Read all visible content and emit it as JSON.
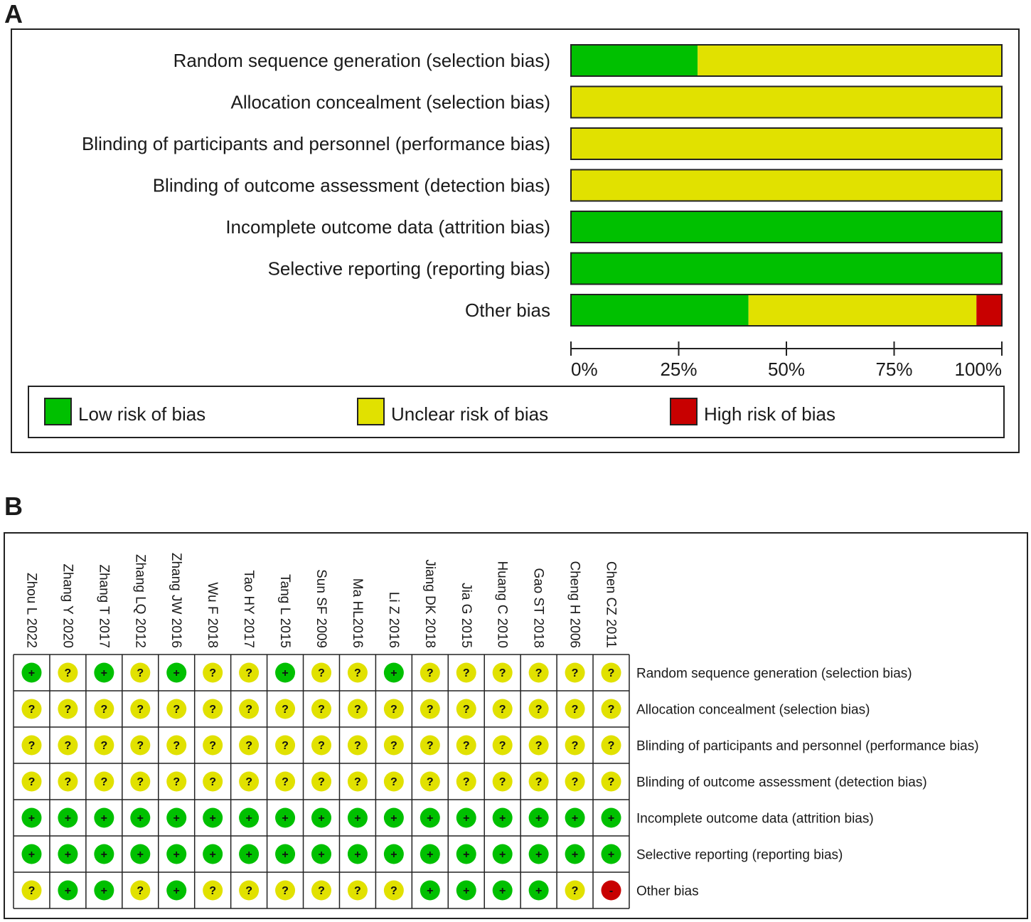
{
  "panels": {
    "a_label": "A",
    "b_label": "B"
  },
  "colors": {
    "low": "#00c000",
    "unclear": "#e1e100",
    "high": "#c80000"
  },
  "legend": [
    {
      "key": "low",
      "label": "Low risk of bias"
    },
    {
      "key": "unclear",
      "label": "Unclear risk of bias"
    },
    {
      "key": "high",
      "label": "High risk of bias"
    }
  ],
  "chart_data": [
    {
      "type": "bar",
      "orientation": "horizontal",
      "stacked": true,
      "categories": [
        "Random sequence generation (selection bias)",
        "Allocation concealment (selection bias)",
        "Blinding of participants and personnel (performance bias)",
        "Blinding of outcome assessment (detection bias)",
        "Incomplete outcome data (attrition bias)",
        "Selective reporting (reporting bias)",
        "Other bias"
      ],
      "series": [
        {
          "name": "Low risk of bias",
          "values": [
            29.4,
            0,
            0,
            0,
            100,
            100,
            41.2
          ]
        },
        {
          "name": "Unclear risk of bias",
          "values": [
            70.6,
            100,
            100,
            100,
            0,
            0,
            52.9
          ]
        },
        {
          "name": "High risk of bias",
          "values": [
            0,
            0,
            0,
            0,
            0,
            0,
            5.9
          ]
        }
      ],
      "xticks": [
        "0%",
        "25%",
        "50%",
        "75%",
        "100%"
      ],
      "xlim": [
        0,
        100
      ],
      "legend_position": "bottom"
    },
    {
      "type": "table",
      "studies": [
        "Zhou L 2022",
        "Zhang Y 2020",
        "Zhang T 2017",
        "Zhang LQ 2012",
        "Zhang JW 2016",
        "Wu F 2018",
        "Tao HY 2017",
        "Tang L 2015",
        "Sun SF 2009",
        "Ma HL2016",
        "Li Z 2016",
        "Jiang DK 2018",
        "Jia G 2015",
        "Huang C 2010",
        "Gao ST 2018",
        "Cheng H 2006",
        "Chen CZ 2011"
      ],
      "domains": [
        "Random sequence generation (selection bias)",
        "Allocation concealment (selection bias)",
        "Blinding of participants and personnel (performance bias)",
        "Blinding of outcome assessment (detection bias)",
        "Incomplete outcome data (attrition bias)",
        "Selective reporting (reporting bias)",
        "Other bias"
      ],
      "symbols": {
        "low": "+",
        "unclear": "?",
        "high": "-"
      },
      "judgements": [
        [
          "low",
          "unclear",
          "low",
          "unclear",
          "low",
          "unclear",
          "unclear",
          "low",
          "unclear",
          "unclear",
          "low",
          "unclear",
          "unclear",
          "unclear",
          "unclear",
          "unclear",
          "unclear"
        ],
        [
          "unclear",
          "unclear",
          "unclear",
          "unclear",
          "unclear",
          "unclear",
          "unclear",
          "unclear",
          "unclear",
          "unclear",
          "unclear",
          "unclear",
          "unclear",
          "unclear",
          "unclear",
          "unclear",
          "unclear"
        ],
        [
          "unclear",
          "unclear",
          "unclear",
          "unclear",
          "unclear",
          "unclear",
          "unclear",
          "unclear",
          "unclear",
          "unclear",
          "unclear",
          "unclear",
          "unclear",
          "unclear",
          "unclear",
          "unclear",
          "unclear"
        ],
        [
          "unclear",
          "unclear",
          "unclear",
          "unclear",
          "unclear",
          "unclear",
          "unclear",
          "unclear",
          "unclear",
          "unclear",
          "unclear",
          "unclear",
          "unclear",
          "unclear",
          "unclear",
          "unclear",
          "unclear"
        ],
        [
          "low",
          "low",
          "low",
          "low",
          "low",
          "low",
          "low",
          "low",
          "low",
          "low",
          "low",
          "low",
          "low",
          "low",
          "low",
          "low",
          "low"
        ],
        [
          "low",
          "low",
          "low",
          "low",
          "low",
          "low",
          "low",
          "low",
          "low",
          "low",
          "low",
          "low",
          "low",
          "low",
          "low",
          "low",
          "low"
        ],
        [
          "unclear",
          "low",
          "low",
          "unclear",
          "low",
          "unclear",
          "unclear",
          "unclear",
          "unclear",
          "unclear",
          "unclear",
          "low",
          "low",
          "low",
          "low",
          "unclear",
          "high"
        ]
      ]
    }
  ]
}
